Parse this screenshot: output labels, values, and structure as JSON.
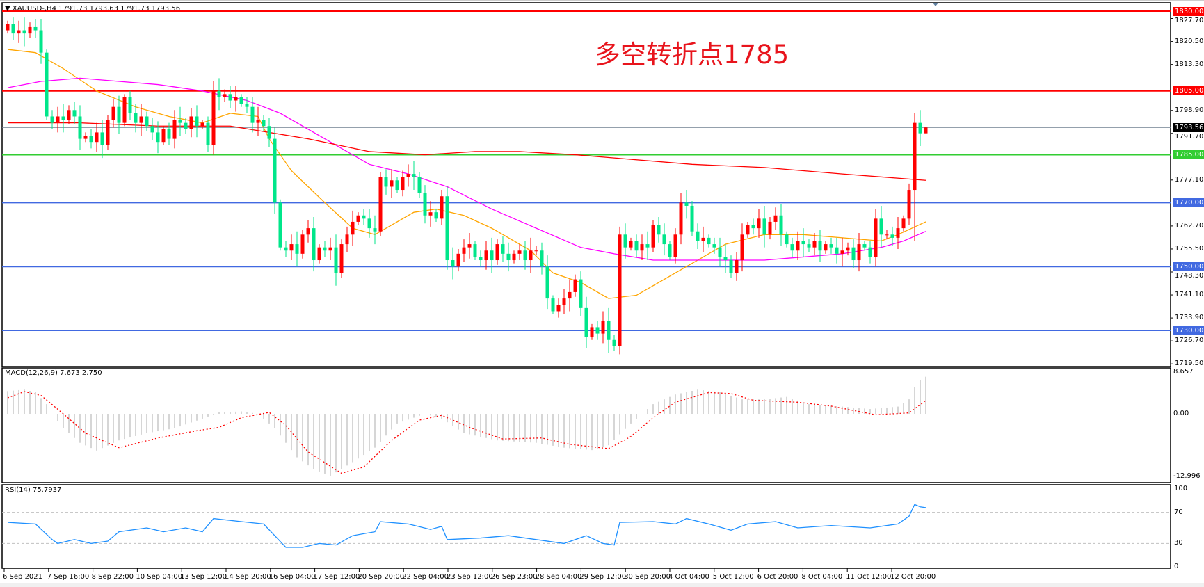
{
  "header": {
    "symbol_line": "XAUUSD-,H4  1791.73 1793.63 1791.73 1793.56"
  },
  "annotation": "多空转折点1785",
  "macd_label": "MACD(12,26,9) 7.673 2.750",
  "rsi_label": "RSI(14) 75.7937",
  "colors": {
    "bull": "#ff0000",
    "bear": "#00e68a",
    "ma_fast": "#ffa500",
    "ma_mid": "#ff00ff",
    "ma_slow": "#ff0000",
    "level_red": "#ff0000",
    "level_green": "#32cd32",
    "level_blue": "#4169e1",
    "macd_hist": "#c0c0c0",
    "macd_signal": "#ff0000",
    "rsi": "#1e90ff"
  },
  "chart_data": [
    {
      "type": "candlestick",
      "title": "XAUUSD-,H4",
      "ylim": [
        1719.5,
        1830
      ],
      "y_ticks": [
        "1827.70",
        "1820.50",
        "1813.30",
        "1798.90",
        "1791.70",
        "1777.10",
        "1762.70",
        "1755.50",
        "1748.30",
        "1741.10",
        "1733.90",
        "1726.70",
        "1719.50"
      ],
      "x_ticks": [
        "6 Sep 2021",
        "7 Sep 16:00",
        "8 Sep 22:00",
        "10 Sep 04:00",
        "13 Sep 12:00",
        "14 Sep 20:00",
        "16 Sep 04:00",
        "17 Sep 12:00",
        "20 Sep 20:00",
        "22 Sep 04:00",
        "23 Sep 12:00",
        "26 Sep 23:00",
        "28 Sep 04:00",
        "29 Sep 12:00",
        "30 Sep 20:00",
        "4 Oct 04:00",
        "5 Oct 12:00",
        "6 Oct 20:00",
        "8 Oct 04:00",
        "11 Oct 12:00",
        "12 Oct 20:00"
      ],
      "last": {
        "open": 1791.73,
        "high": 1793.63,
        "low": 1791.73,
        "close": 1793.56
      },
      "closes": [
        1826,
        1823,
        1824,
        1823,
        1825,
        1824,
        1817,
        1797,
        1795,
        1797,
        1796,
        1799,
        1797,
        1790,
        1791,
        1789,
        1792,
        1788,
        1796,
        1800,
        1795,
        1803,
        1798,
        1795,
        1797,
        1794,
        1792,
        1789,
        1793,
        1790,
        1796,
        1795,
        1793,
        1797,
        1794,
        1795,
        1788,
        1805,
        1803,
        1804,
        1802,
        1803,
        1801,
        1800,
        1795,
        1796,
        1794,
        1790,
        1770,
        1756,
        1755,
        1757,
        1754,
        1760,
        1762,
        1752,
        1756,
        1755,
        1756,
        1748,
        1757,
        1760,
        1764,
        1766,
        1765,
        1762,
        1761,
        1778,
        1775,
        1777,
        1774,
        1778,
        1779,
        1778,
        1773,
        1766,
        1767,
        1765,
        1772,
        1752,
        1750,
        1754,
        1756,
        1757,
        1753,
        1752,
        1755,
        1752,
        1757,
        1754,
        1752,
        1754,
        1755,
        1752,
        1755,
        1755,
        1750,
        1740,
        1736,
        1738,
        1740,
        1742,
        1746,
        1737,
        1728,
        1731,
        1729,
        1733,
        1727,
        1725,
        1760,
        1756,
        1758,
        1755,
        1757,
        1756,
        1763,
        1760,
        1757,
        1753,
        1760,
        1770,
        1769,
        1761,
        1758,
        1759,
        1757,
        1756,
        1753,
        1752,
        1748,
        1752,
        1760,
        1763,
        1762,
        1765,
        1760,
        1764,
        1766,
        1760,
        1757,
        1755,
        1758,
        1757,
        1756,
        1758,
        1755,
        1757,
        1756,
        1754,
        1755,
        1756,
        1752,
        1757,
        1756,
        1753,
        1765,
        1760,
        1760,
        1759,
        1762,
        1765,
        1774,
        1795,
        1791.73,
        1793.56
      ],
      "moving_averages": [
        {
          "color_key": "ma_fast",
          "points": [
            [
              0,
              1818
            ],
            [
              5,
              1817
            ],
            [
              10,
              1812
            ],
            [
              16,
              1805
            ],
            [
              23,
              1800
            ],
            [
              29,
              1797
            ],
            [
              35,
              1795
            ],
            [
              40,
              1798
            ],
            [
              45,
              1797
            ],
            [
              47,
              1790
            ],
            [
              51,
              1780
            ],
            [
              57,
              1770
            ],
            [
              62,
              1762
            ],
            [
              66,
              1760
            ],
            [
              69,
              1763
            ],
            [
              73,
              1767
            ],
            [
              77,
              1768
            ],
            [
              82,
              1766
            ],
            [
              87,
              1762
            ],
            [
              94,
              1755
            ],
            [
              98,
              1748
            ],
            [
              103,
              1745
            ],
            [
              108,
              1740
            ],
            [
              113,
              1741
            ],
            [
              118,
              1746
            ],
            [
              124,
              1752
            ],
            [
              129,
              1757
            ],
            [
              136,
              1760
            ],
            [
              143,
              1760
            ],
            [
              150,
              1759
            ],
            [
              157,
              1758
            ],
            [
              160,
              1760
            ],
            [
              165,
              1764
            ]
          ]
        },
        {
          "color_key": "ma_mid",
          "points": [
            [
              0,
              1806
            ],
            [
              6,
              1808
            ],
            [
              13,
              1809
            ],
            [
              20,
              1808
            ],
            [
              27,
              1807
            ],
            [
              35,
              1805
            ],
            [
              43,
              1802
            ],
            [
              49,
              1798
            ],
            [
              57,
              1790
            ],
            [
              65,
              1782
            ],
            [
              72,
              1779
            ],
            [
              79,
              1775
            ],
            [
              87,
              1768
            ],
            [
              95,
              1762
            ],
            [
              103,
              1756
            ],
            [
              109,
              1754
            ],
            [
              116,
              1752
            ],
            [
              123,
              1752
            ],
            [
              131,
              1752
            ],
            [
              136,
              1752
            ],
            [
              143,
              1753
            ],
            [
              150,
              1754
            ],
            [
              157,
              1756
            ],
            [
              161,
              1758
            ],
            [
              165,
              1761
            ]
          ]
        },
        {
          "color_key": "ma_slow",
          "points": [
            [
              0,
              1795
            ],
            [
              13,
              1795
            ],
            [
              27,
              1794
            ],
            [
              40,
              1794
            ],
            [
              54,
              1790
            ],
            [
              65,
              1786
            ],
            [
              75,
              1785
            ],
            [
              84,
              1786
            ],
            [
              92,
              1786
            ],
            [
              102,
              1785
            ],
            [
              109,
              1784
            ],
            [
              123,
              1782
            ],
            [
              136,
              1781
            ],
            [
              150,
              1779
            ],
            [
              165,
              1777
            ]
          ]
        }
      ],
      "levels": [
        {
          "value": "1830.00",
          "color_key": "level_red"
        },
        {
          "value": "1805.00",
          "color_key": "level_red"
        },
        {
          "value": "1793.56",
          "color_key": "current"
        },
        {
          "value": "1785.00",
          "color_key": "level_green"
        },
        {
          "value": "1770.00",
          "color_key": "level_blue"
        },
        {
          "value": "1750.00",
          "color_key": "level_blue"
        },
        {
          "value": "1730.00",
          "color_key": "level_blue"
        }
      ]
    },
    {
      "type": "bar+line",
      "title": "MACD(12,26,9)",
      "ylim": [
        -12.996,
        8.657
      ],
      "y_ticks": [
        "8.657",
        "0.00",
        "-12.996"
      ],
      "histogram_points": [
        [
          0,
          4.7
        ],
        [
          3,
          5
        ],
        [
          5,
          4.5
        ],
        [
          7,
          2
        ],
        [
          8,
          0
        ],
        [
          10,
          -3
        ],
        [
          13,
          -6
        ],
        [
          16,
          -7.6
        ],
        [
          20,
          -5.5
        ],
        [
          25,
          -4
        ],
        [
          30,
          -3
        ],
        [
          35,
          -1
        ],
        [
          38,
          0.3
        ],
        [
          42,
          0.5
        ],
        [
          45,
          0
        ],
        [
          48,
          -3
        ],
        [
          52,
          -9
        ],
        [
          55,
          -11.5
        ],
        [
          58,
          -12.8
        ],
        [
          62,
          -10
        ],
        [
          66,
          -7
        ],
        [
          70,
          -2
        ],
        [
          75,
          0
        ],
        [
          78,
          -1
        ],
        [
          82,
          -4
        ],
        [
          88,
          -5.5
        ],
        [
          95,
          -6
        ],
        [
          100,
          -7
        ],
        [
          105,
          -7.5
        ],
        [
          108,
          -6.5
        ],
        [
          112,
          -2
        ],
        [
          116,
          2
        ],
        [
          120,
          4
        ],
        [
          124,
          5
        ],
        [
          128,
          4.5
        ],
        [
          132,
          3
        ],
        [
          136,
          3
        ],
        [
          140,
          3.5
        ],
        [
          144,
          2
        ],
        [
          150,
          1.5
        ],
        [
          155,
          1
        ],
        [
          160,
          1.5
        ],
        [
          162,
          3
        ],
        [
          163,
          5.5
        ],
        [
          164,
          7
        ],
        [
          165,
          7.673
        ]
      ],
      "signal_points": [
        [
          0,
          3.3
        ],
        [
          3,
          4.6
        ],
        [
          6,
          3.8
        ],
        [
          10,
          0
        ],
        [
          14,
          -4
        ],
        [
          20,
          -7
        ],
        [
          27,
          -5
        ],
        [
          34,
          -3.5
        ],
        [
          38,
          -2.8
        ],
        [
          42,
          -0.8
        ],
        [
          47,
          0.3
        ],
        [
          50,
          -2.4
        ],
        [
          54,
          -7.9
        ],
        [
          60,
          -12.3
        ],
        [
          64,
          -11
        ],
        [
          69,
          -5.5
        ],
        [
          74,
          -1.3
        ],
        [
          78,
          -0.3
        ],
        [
          83,
          -2.8
        ],
        [
          89,
          -5.2
        ],
        [
          96,
          -5
        ],
        [
          101,
          -6.3
        ],
        [
          108,
          -7.2
        ],
        [
          112,
          -4.7
        ],
        [
          116,
          -0.8
        ],
        [
          120,
          2.4
        ],
        [
          126,
          4.4
        ],
        [
          130,
          4.2
        ],
        [
          134,
          2.8
        ],
        [
          142,
          2.4
        ],
        [
          148,
          1.6
        ],
        [
          156,
          -0.2
        ],
        [
          162,
          0.2
        ],
        [
          165,
          2.75
        ]
      ]
    },
    {
      "type": "line",
      "title": "RSI(14)",
      "ylim": [
        0,
        100
      ],
      "y_ticks": [
        "100",
        "70",
        "30",
        "0"
      ],
      "points": [
        [
          0,
          57
        ],
        [
          5,
          55
        ],
        [
          8,
          35
        ],
        [
          9,
          30
        ],
        [
          12,
          35
        ],
        [
          15,
          30
        ],
        [
          18,
          33
        ],
        [
          20,
          45
        ],
        [
          25,
          50
        ],
        [
          28,
          45
        ],
        [
          32,
          50
        ],
        [
          35,
          45
        ],
        [
          37,
          62
        ],
        [
          42,
          58
        ],
        [
          46,
          55
        ],
        [
          48,
          40
        ],
        [
          50,
          25
        ],
        [
          53,
          25
        ],
        [
          56,
          30
        ],
        [
          59,
          28
        ],
        [
          62,
          40
        ],
        [
          66,
          45
        ],
        [
          67,
          58
        ],
        [
          72,
          55
        ],
        [
          76,
          48
        ],
        [
          78,
          52
        ],
        [
          79,
          35
        ],
        [
          85,
          37
        ],
        [
          90,
          40
        ],
        [
          95,
          35
        ],
        [
          100,
          30
        ],
        [
          104,
          40
        ],
        [
          107,
          30
        ],
        [
          109,
          28
        ],
        [
          110,
          57
        ],
        [
          116,
          58
        ],
        [
          120,
          55
        ],
        [
          122,
          62
        ],
        [
          126,
          55
        ],
        [
          130,
          47
        ],
        [
          133,
          55
        ],
        [
          138,
          58
        ],
        [
          142,
          50
        ],
        [
          148,
          53
        ],
        [
          155,
          50
        ],
        [
          160,
          55
        ],
        [
          162,
          65
        ],
        [
          163,
          80
        ],
        [
          164,
          77
        ],
        [
          165,
          76
        ]
      ]
    }
  ]
}
